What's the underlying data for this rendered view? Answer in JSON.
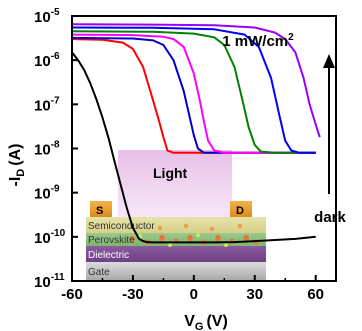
{
  "chart_data": {
    "type": "line",
    "xlabel_main": "V",
    "xlabel_sub": "G",
    "xlabel_unit": "(V)",
    "ylabel_main": "-I",
    "ylabel_sub": "D",
    "ylabel_unit": "(A)",
    "xlim": [
      -60,
      70
    ],
    "ylim_exp": [
      -11,
      -5
    ],
    "y_scale": "log",
    "x_ticks": [
      {
        "v": -60,
        "label": "-60"
      },
      {
        "v": -30,
        "label": "-30"
      },
      {
        "v": 0,
        "label": "0"
      },
      {
        "v": 30,
        "label": "30"
      },
      {
        "v": 60,
        "label": "60"
      }
    ],
    "y_ticks": [
      {
        "e": -5,
        "base": "10",
        "exp": "-5"
      },
      {
        "e": -6,
        "base": "10",
        "exp": "-6"
      },
      {
        "e": -7,
        "base": "10",
        "exp": "-7"
      },
      {
        "e": -8,
        "base": "10",
        "exp": "-8"
      },
      {
        "e": -9,
        "base": "10",
        "exp": "-9"
      },
      {
        "e": -10,
        "base": "10",
        "exp": "-10"
      },
      {
        "e": -11,
        "base": "10",
        "exp": "-11"
      }
    ],
    "annotations": {
      "top_label": "1 mW/cm",
      "top_label_sup": "2",
      "bottom_label": "dark",
      "light_label": "Light",
      "source_label": "S",
      "drain_label": "D",
      "layers": [
        "Semiconductor",
        "Perovskite",
        "Dielectric",
        "Gate"
      ]
    },
    "series": [
      {
        "color": "#000000",
        "x": [
          -60,
          -57,
          -54,
          -51,
          -48,
          -45,
          -42,
          -39,
          -36,
          -33,
          -30,
          -27,
          -25,
          -23,
          -20,
          -10,
          0,
          10,
          20,
          30,
          40,
          50,
          60
        ],
        "y": [
          1.5e-06,
          1e-06,
          6e-07,
          3e-07,
          1.3e-07,
          5e-08,
          1.7e-08,
          5e-09,
          1.5e-09,
          4.5e-10,
          1.6e-10,
          9e-11,
          8e-11,
          7.6e-11,
          7.5e-11,
          7.5e-11,
          7.5e-11,
          7.5e-11,
          7.6e-11,
          8e-11,
          8.5e-11,
          9e-11,
          1e-10
        ]
      },
      {
        "color": "#ff0000",
        "x": [
          -60,
          -45,
          -35,
          -30,
          -25,
          -20,
          -17,
          -15,
          -13,
          -10,
          0,
          20,
          40,
          60
        ],
        "y": [
          3e-06,
          2.9e-06,
          2.5e-06,
          1.8e-06,
          7e-07,
          1.2e-07,
          4e-08,
          1.8e-08,
          9e-09,
          8e-09,
          8e-09,
          8e-09,
          8e-09,
          8e-09
        ]
      },
      {
        "color": "#0000cc",
        "x": [
          -60,
          -30,
          -20,
          -15,
          -10,
          -5,
          -2,
          0,
          2,
          5,
          10,
          30,
          60
        ],
        "y": [
          3.2e-06,
          3.1e-06,
          2.8e-06,
          2.2e-06,
          1e-06,
          2e-07,
          5e-08,
          2e-08,
          1e-08,
          8e-09,
          8e-09,
          8e-09,
          8e-09
        ]
      },
      {
        "color": "#ff00ff",
        "x": [
          -60,
          -30,
          -15,
          -10,
          -5,
          0,
          3,
          5,
          7,
          10,
          15,
          30,
          60
        ],
        "y": [
          3.8e-06,
          3.7e-06,
          3.4e-06,
          3e-06,
          2e-06,
          5e-07,
          1.2e-07,
          4e-08,
          1.5e-08,
          9e-09,
          8e-09,
          8e-09,
          8e-09
        ]
      },
      {
        "color": "#008000",
        "x": [
          -60,
          -20,
          0,
          10,
          15,
          20,
          24,
          27,
          30,
          33,
          40,
          60
        ],
        "y": [
          4.5e-06,
          4.4e-06,
          4e-06,
          3.3e-06,
          2.2e-06,
          7e-07,
          1.2e-07,
          3e-08,
          1.2e-08,
          8.5e-09,
          8e-09,
          8e-09
        ]
      },
      {
        "color": "#0000ff",
        "x": [
          -60,
          -20,
          10,
          25,
          32,
          38,
          42,
          45,
          48,
          52,
          60
        ],
        "y": [
          5.5e-06,
          5.4e-06,
          5e-06,
          3.8e-06,
          2e-06,
          4e-07,
          6e-08,
          1.5e-08,
          9e-09,
          8e-09,
          8e-09
        ]
      },
      {
        "color": "#9900ff",
        "x": [
          -60,
          -20,
          10,
          30,
          40,
          45,
          50,
          54,
          57,
          60,
          62
        ],
        "y": [
          6.5e-06,
          6.4e-06,
          6.2e-06,
          5.5e-06,
          4.2e-06,
          3e-06,
          1.5e-06,
          4e-07,
          1e-07,
          3.5e-08,
          1.8e-08
        ]
      }
    ]
  }
}
